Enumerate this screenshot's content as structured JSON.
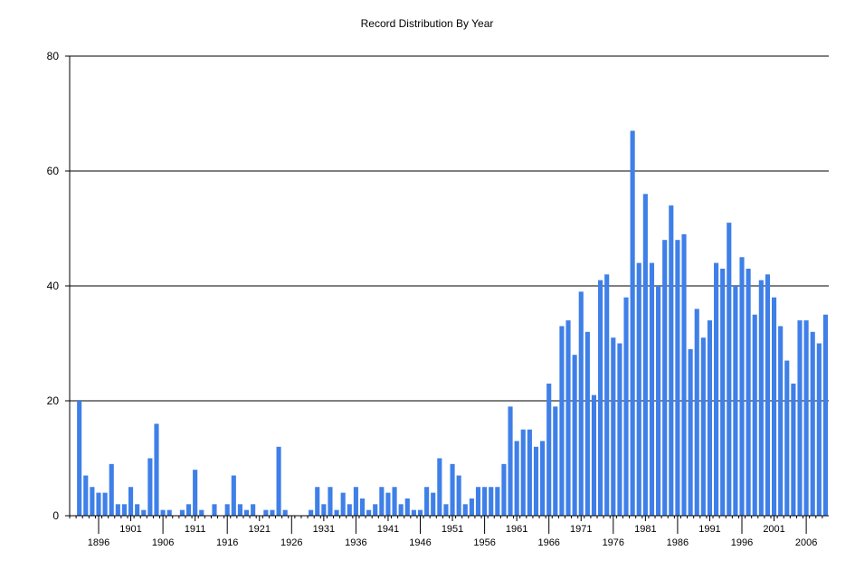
{
  "chart_data": {
    "type": "bar",
    "title": "Record Distribution By Year",
    "xlabel": "",
    "ylabel": "",
    "ylim": [
      0,
      80
    ],
    "yticks": [
      0,
      20,
      40,
      60,
      80
    ],
    "grid": true,
    "bar_color": "#3f7fe8",
    "x_start": 1892,
    "x_end": 2009,
    "xtick_labels": [
      {
        "year": 1896,
        "label": "1896",
        "row": 2
      },
      {
        "year": 1901,
        "label": "1901",
        "row": 1
      },
      {
        "year": 1906,
        "label": "1906",
        "row": 2
      },
      {
        "year": 1911,
        "label": "1911",
        "row": 1
      },
      {
        "year": 1916,
        "label": "1916",
        "row": 2
      },
      {
        "year": 1921,
        "label": "1921",
        "row": 1
      },
      {
        "year": 1926,
        "label": "1926",
        "row": 2
      },
      {
        "year": 1931,
        "label": "1931",
        "row": 1
      },
      {
        "year": 1936,
        "label": "1936",
        "row": 2
      },
      {
        "year": 1941,
        "label": "1941",
        "row": 1
      },
      {
        "year": 1946,
        "label": "1946",
        "row": 2
      },
      {
        "year": 1951,
        "label": "1951",
        "row": 1
      },
      {
        "year": 1956,
        "label": "1956",
        "row": 2
      },
      {
        "year": 1961,
        "label": "1961",
        "row": 1
      },
      {
        "year": 1966,
        "label": "1966",
        "row": 2
      },
      {
        "year": 1971,
        "label": "1971",
        "row": 1
      },
      {
        "year": 1976,
        "label": "1976",
        "row": 2
      },
      {
        "year": 1981,
        "label": "1981",
        "row": 1
      },
      {
        "year": 1986,
        "label": "1986",
        "row": 2
      },
      {
        "year": 1991,
        "label": "1991",
        "row": 1
      },
      {
        "year": 1996,
        "label": "1996",
        "row": 2
      },
      {
        "year": 2001,
        "label": "2001",
        "row": 1
      },
      {
        "year": 2006,
        "label": "2006",
        "row": 2
      }
    ],
    "years": [
      1892,
      1893,
      1894,
      1895,
      1896,
      1897,
      1898,
      1899,
      1900,
      1901,
      1902,
      1903,
      1904,
      1905,
      1906,
      1907,
      1908,
      1909,
      1910,
      1911,
      1912,
      1913,
      1914,
      1915,
      1916,
      1917,
      1918,
      1919,
      1920,
      1921,
      1922,
      1923,
      1924,
      1925,
      1926,
      1927,
      1928,
      1929,
      1930,
      1931,
      1932,
      1933,
      1934,
      1935,
      1936,
      1937,
      1938,
      1939,
      1940,
      1941,
      1942,
      1943,
      1944,
      1945,
      1946,
      1947,
      1948,
      1949,
      1950,
      1951,
      1952,
      1953,
      1954,
      1955,
      1956,
      1957,
      1958,
      1959,
      1960,
      1961,
      1962,
      1963,
      1964,
      1965,
      1966,
      1967,
      1968,
      1969,
      1970,
      1971,
      1972,
      1973,
      1974,
      1975,
      1976,
      1977,
      1978,
      1979,
      1980,
      1981,
      1982,
      1983,
      1984,
      1985,
      1986,
      1987,
      1988,
      1989,
      1990,
      1991,
      1992,
      1993,
      1994,
      1995,
      1996,
      1997,
      1998,
      1999,
      2000,
      2001,
      2002,
      2003,
      2004,
      2005,
      2006,
      2007,
      2008,
      2009
    ],
    "values": [
      0,
      20,
      7,
      5,
      4,
      4,
      9,
      2,
      2,
      5,
      2,
      1,
      10,
      16,
      1,
      1,
      0,
      1,
      2,
      8,
      1,
      0,
      2,
      0,
      2,
      7,
      2,
      1,
      2,
      0,
      1,
      1,
      12,
      1,
      0,
      0,
      0,
      1,
      5,
      2,
      5,
      1,
      4,
      2,
      5,
      3,
      1,
      2,
      5,
      4,
      5,
      2,
      3,
      1,
      1,
      5,
      4,
      10,
      2,
      9,
      7,
      2,
      3,
      5,
      5,
      5,
      5,
      9,
      19,
      13,
      15,
      15,
      12,
      13,
      23,
      19,
      33,
      34,
      28,
      39,
      32,
      21,
      41,
      42,
      31,
      30,
      38,
      67,
      44,
      56,
      44,
      40,
      48,
      54,
      48,
      49,
      29,
      36,
      31,
      34,
      44,
      43,
      51,
      40,
      45,
      43,
      35,
      41,
      42,
      38,
      33,
      27,
      23,
      34,
      34,
      32,
      30,
      35
    ]
  }
}
